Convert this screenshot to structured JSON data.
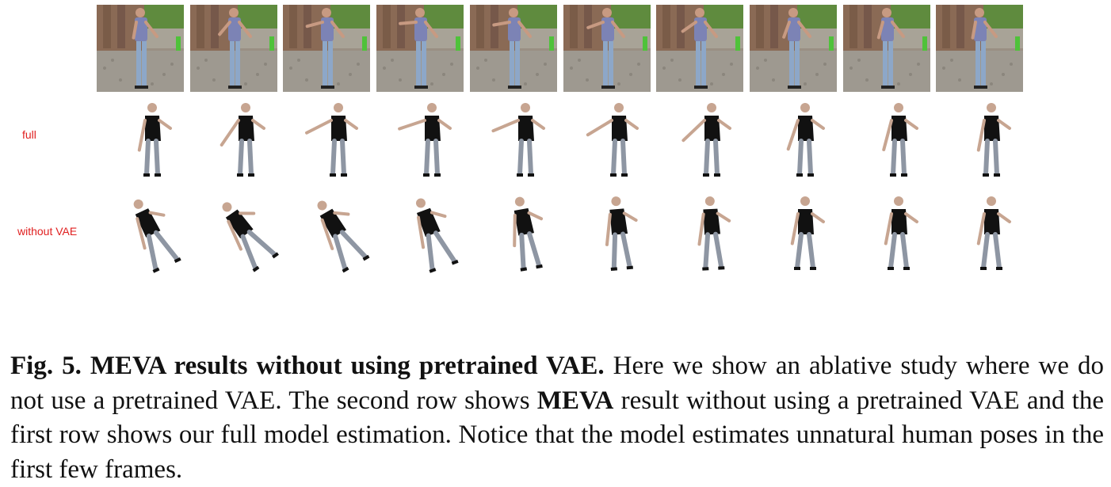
{
  "figure": {
    "row_labels": {
      "full": "full",
      "without_vae": "without VAE"
    },
    "frame_count": 10
  },
  "caption": {
    "fig_label": "Fig. 5.",
    "title": "MEVA results without using pretrained VAE.",
    "text_1": "Here we show an ablative study where we do not use a pretrained VAE. The second row shows",
    "emph": "MEVA",
    "text_2": "result without using a pretrained VAE and the first row shows our full model estimation. Notice that the model estimates unnatural human poses in the first few frames."
  }
}
